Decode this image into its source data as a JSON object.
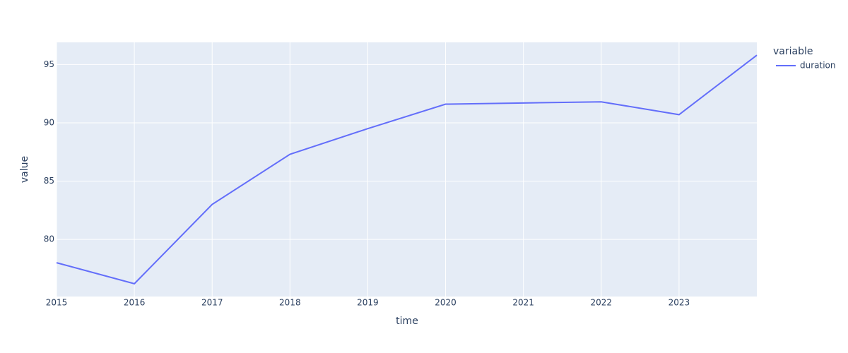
{
  "chart_data": {
    "type": "line",
    "x": [
      2015,
      2016,
      2017,
      2018,
      2019,
      2020,
      2021,
      2022,
      2023,
      2024
    ],
    "series": [
      {
        "name": "duration",
        "color": "#636efa",
        "values": [
          78.0,
          76.2,
          83.0,
          87.3,
          89.5,
          91.6,
          91.7,
          91.8,
          90.7,
          95.8
        ]
      }
    ],
    "xlabel": "time",
    "ylabel": "value",
    "legend_title": "variable",
    "xlim": [
      2015,
      2024
    ],
    "xticks": [
      2015,
      2016,
      2017,
      2018,
      2019,
      2020,
      2021,
      2022,
      2023
    ],
    "ylim": [
      75.1,
      96.9
    ],
    "yticks": [
      80,
      85,
      90,
      95
    ],
    "grid": true,
    "legend_position": "right",
    "background": "#e5ecf6"
  }
}
